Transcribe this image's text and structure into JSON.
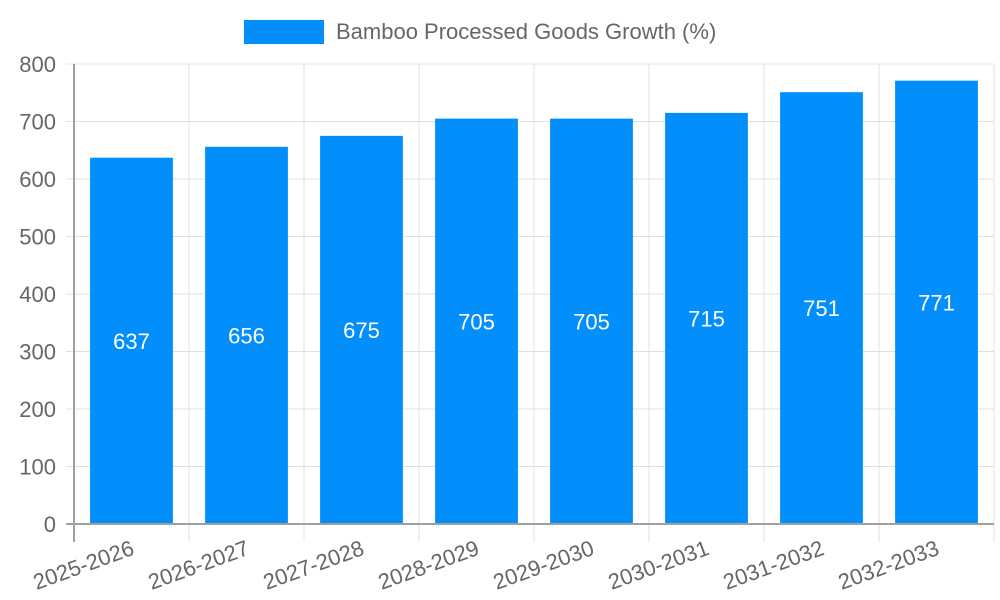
{
  "legend": {
    "label": "Bamboo Processed Goods Growth (%)",
    "color": "#038ffb"
  },
  "chart_data": {
    "type": "bar",
    "title": "",
    "xlabel": "",
    "ylabel": "",
    "categories": [
      "2025-2026",
      "2026-2027",
      "2027-2028",
      "2028-2029",
      "2029-2030",
      "2030-2031",
      "2031-2032",
      "2032-2033"
    ],
    "series": [
      {
        "name": "Bamboo Processed Goods Growth (%)",
        "values": [
          637,
          656,
          675,
          705,
          705,
          715,
          751,
          771
        ],
        "color": "#038ffb"
      }
    ],
    "ylim": [
      0,
      800
    ],
    "yticks": [
      0,
      100,
      200,
      300,
      400,
      500,
      600,
      700,
      800
    ],
    "grid": true,
    "legend_position": "top",
    "data_labels": true
  }
}
